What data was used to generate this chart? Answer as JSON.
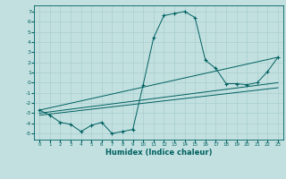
{
  "xlabel": "Humidex (Indice chaleur)",
  "bg_color": "#c2e0e0",
  "line_color": "#006060",
  "xlim": [
    -0.5,
    23.5
  ],
  "ylim": [
    -5.6,
    7.6
  ],
  "xticks": [
    0,
    1,
    2,
    3,
    4,
    5,
    6,
    7,
    8,
    9,
    10,
    11,
    12,
    13,
    14,
    15,
    16,
    17,
    18,
    19,
    20,
    21,
    22,
    23
  ],
  "yticks": [
    -5,
    -4,
    -3,
    -2,
    -1,
    0,
    1,
    2,
    3,
    4,
    5,
    6,
    7
  ],
  "main_x": [
    0,
    1,
    2,
    3,
    4,
    5,
    6,
    7,
    8,
    9,
    10,
    11,
    12,
    13,
    14,
    15,
    16,
    17,
    18,
    19,
    20,
    21,
    22,
    23
  ],
  "main_y": [
    -2.7,
    -3.2,
    -3.9,
    -4.1,
    -4.8,
    -4.2,
    -3.9,
    -5.0,
    -4.8,
    -4.6,
    -0.2,
    4.4,
    6.6,
    6.8,
    7.0,
    6.4,
    2.2,
    1.4,
    -0.1,
    -0.1,
    -0.2,
    0.0,
    1.1,
    2.5
  ],
  "line1_x": [
    0,
    23
  ],
  "line1_y": [
    -2.7,
    2.5
  ],
  "line2_x": [
    0,
    23
  ],
  "line2_y": [
    -3.0,
    0.0
  ],
  "line3_x": [
    0,
    23
  ],
  "line3_y": [
    -3.2,
    -0.5
  ],
  "grid_color": "#aacece"
}
